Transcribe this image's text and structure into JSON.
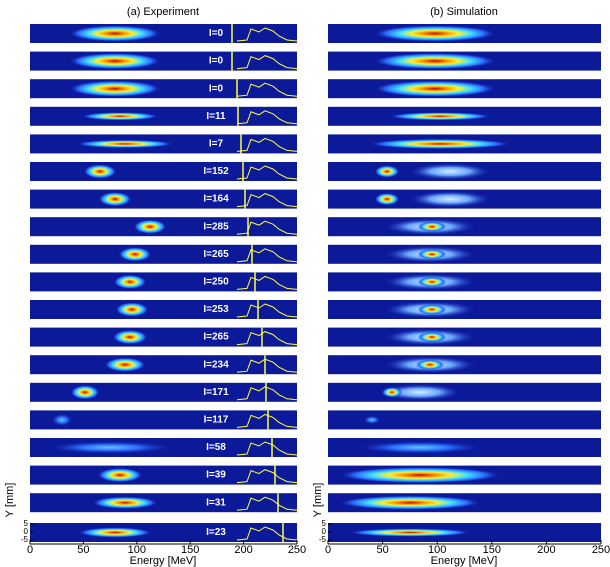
{
  "panels": [
    {
      "title": "(a) Experiment",
      "labels": [
        "I=0",
        "I=0",
        "I=0",
        "I=11",
        "I=7",
        "I=152",
        "I=164",
        "I=285",
        "I=265",
        "I=250",
        "I=253",
        "I=265",
        "I=234",
        "I=171",
        "I=117",
        "I=58",
        "I=39",
        "I=31",
        "I=23"
      ]
    },
    {
      "title": "(b) Simulation"
    }
  ],
  "x_axis": {
    "label": "Energy [MeV]",
    "xlim": [
      0,
      250
    ],
    "xticks": [
      0,
      50,
      100,
      150,
      200,
      250
    ]
  },
  "y_axis": {
    "label": "Y [mm]",
    "yticks": [
      5,
      0,
      -5
    ]
  }
}
